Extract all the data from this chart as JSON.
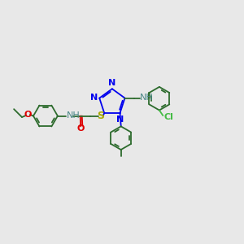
{
  "bg_color": "#e8e8e8",
  "fig_size": [
    3.0,
    3.0
  ],
  "dpi": 100,
  "bond_lw": 1.3,
  "font_size": 8.0,
  "colors": {
    "C": "#2d6b2d",
    "N": "#0000ee",
    "O": "#dd0000",
    "S": "#aaaa00",
    "Cl": "#44bb44",
    "NH": "#4a8888"
  }
}
